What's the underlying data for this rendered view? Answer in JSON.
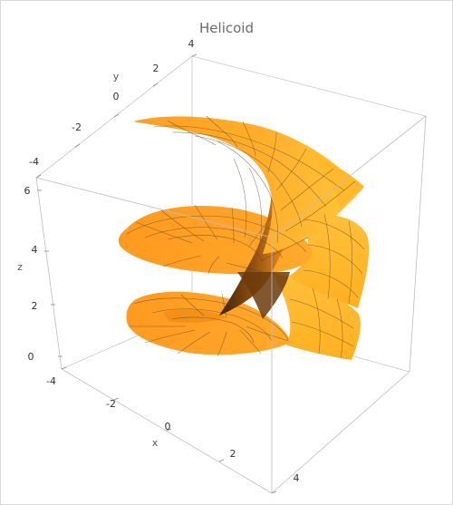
{
  "chart_data": {
    "type": "surface3d",
    "title": "Helicoid",
    "surface": "helicoid",
    "parametrization": {
      "x": "u*cos(v)",
      "y": "u*sin(v)",
      "z": "v"
    },
    "u_range": [
      0,
      4
    ],
    "v_range": [
      0,
      6.28
    ],
    "xlabel": "x",
    "ylabel": "y",
    "zlabel": "z",
    "xlim": [
      -4,
      4
    ],
    "ylim": [
      -4,
      4
    ],
    "zlim": [
      0,
      6.28
    ],
    "x_ticks": [
      "-4",
      "-2",
      "0",
      "2",
      "4"
    ],
    "y_ticks": [
      "-2",
      "0",
      "2",
      "4"
    ],
    "y_ticks_front": [
      "-4"
    ],
    "z_ticks": [
      "0",
      "2",
      "4",
      "6"
    ],
    "colors": {
      "surface_light": "#ffc233",
      "surface_mid": "#ff9a1f",
      "surface_dark": "#4a2a08",
      "mesh": "#5a4632",
      "box": "#c7c7c7"
    },
    "mesh_lines": true
  }
}
